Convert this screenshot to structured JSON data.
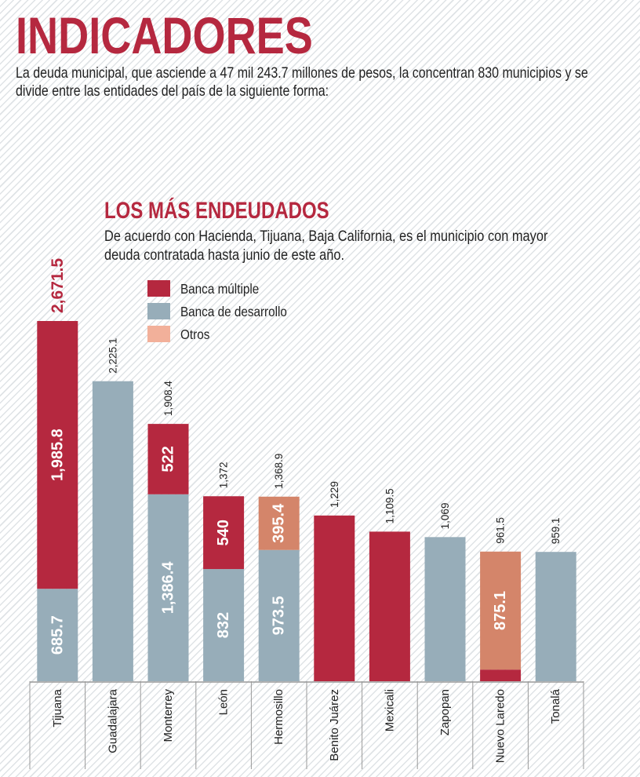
{
  "header": {
    "title": "INDICADORES",
    "intro": "La deuda municipal, que asciende a 47 mil 243.7 millones de pesos, la concentran 830 municipios y se divide entre las entidades del país de la siguiente forma:"
  },
  "section": {
    "title": "LOS MÁS ENDEUDADOS",
    "description": "De acuerdo con Hacienda, Tijuana, Baja California, es el municipio con mayor deuda contratada hasta junio de este año."
  },
  "chart_data": {
    "type": "bar",
    "stacked": true,
    "orientation": "vertical",
    "title": "LOS MÁS ENDEUDADOS",
    "categories": [
      "Tijuana",
      "Guadalajara",
      "Monterrey",
      "León",
      "Hermosillo",
      "Benito Juárez",
      "Mexicali",
      "Zapopan",
      "Nuevo Laredo",
      "Tonalá"
    ],
    "series": [
      {
        "name": "Banca de desarrollo",
        "color": "#97adb9",
        "values": [
          685.7,
          2225.1,
          1386.4,
          832,
          973.5,
          0,
          0,
          1069,
          0,
          959.1
        ],
        "labels": [
          "685.7",
          null,
          "1,386.4",
          "832",
          "973.5",
          null,
          null,
          null,
          null,
          null
        ]
      },
      {
        "name": "Banca múltiple",
        "color": "#b5283f",
        "values": [
          1985.8,
          0,
          522,
          540,
          0,
          1229,
          1109.5,
          0,
          86.4,
          0
        ],
        "labels": [
          "1,985.8",
          null,
          "522",
          "540",
          null,
          null,
          null,
          null,
          null,
          null
        ]
      },
      {
        "name": "Otros",
        "color": "#d4856a",
        "legend_color": "#f2b09a",
        "values": [
          0,
          0,
          0,
          0,
          395.4,
          0,
          0,
          0,
          875.1,
          0
        ],
        "labels": [
          null,
          null,
          null,
          null,
          "395.4",
          null,
          null,
          null,
          "875.1",
          null
        ]
      }
    ],
    "legend_order": [
      "Banca múltiple",
      "Banca de desarrollo",
      "Otros"
    ],
    "totals": [
      "2,671.5",
      "2,225.1",
      "1,908.4",
      "1,372",
      "1,368.9",
      "1,229",
      "1,109.5",
      "1,069",
      "961.5",
      "959.1"
    ],
    "total_values": [
      2671.5,
      2225.1,
      1908.4,
      1372,
      1368.9,
      1229,
      1109.5,
      1069,
      961.5,
      959.1
    ],
    "highlight_total_color": "#b5283f",
    "ylim": [
      0,
      2671.5
    ],
    "grid": false,
    "legend_position": "top-left"
  }
}
